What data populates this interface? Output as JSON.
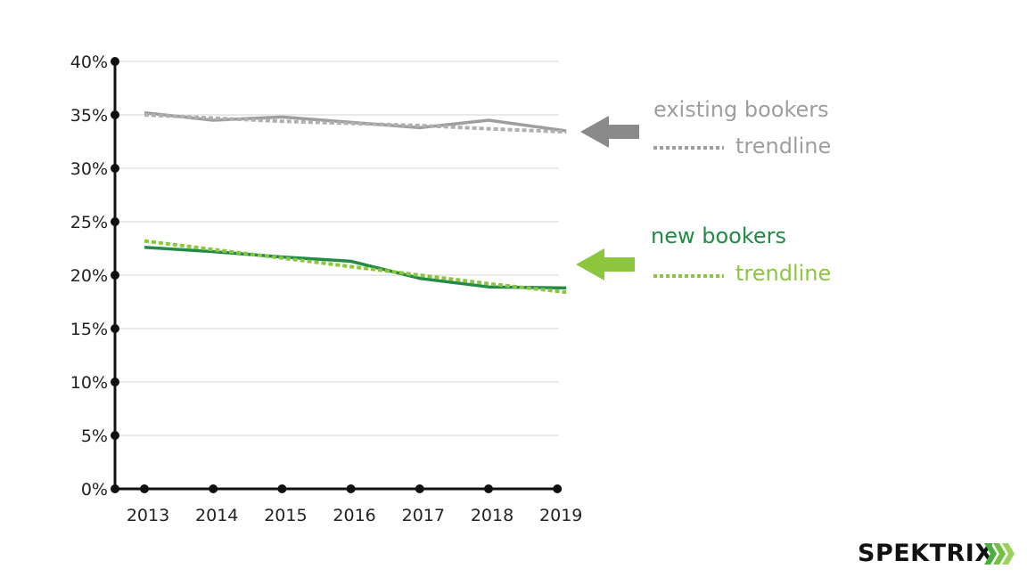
{
  "chart_data": {
    "type": "line",
    "x": [
      "2013",
      "2014",
      "2015",
      "2016",
      "2017",
      "2018",
      "2019"
    ],
    "y_ticks": [
      "0%",
      "5%",
      "10%",
      "15%",
      "20%",
      "25%",
      "30%",
      "35%",
      "40%"
    ],
    "ylim": [
      0,
      40
    ],
    "grid": true,
    "series": [
      {
        "name": "existing bookers",
        "kind": "actual",
        "color": "#9e9e9e",
        "values": [
          35.2,
          34.5,
          34.8,
          34.3,
          33.8,
          34.5,
          33.5
        ]
      },
      {
        "name": "trendline",
        "kind": "trend",
        "color": "#b0b0b0",
        "values": [
          35.0,
          34.7,
          34.4,
          34.2,
          34.0,
          33.7,
          33.4
        ]
      },
      {
        "name": "new bookers",
        "kind": "actual",
        "color": "#238b45",
        "values": [
          22.6,
          22.2,
          21.7,
          21.3,
          19.7,
          18.9,
          18.8
        ]
      },
      {
        "name": "trendline",
        "kind": "trend",
        "color": "#8cc63f",
        "values": [
          23.2,
          22.4,
          21.6,
          20.8,
          20.0,
          19.2,
          18.4
        ]
      }
    ]
  },
  "legend": {
    "existing_label": "existing bookers",
    "existing_trend_label": "trendline",
    "new_label": "new bookers",
    "new_trend_label": "trendline"
  },
  "colors": {
    "existing": "#9e9e9e",
    "existing_arrow": "#8a8a8a",
    "new": "#238b45",
    "new_trend": "#8cc63f",
    "axis": "#111111",
    "grid": "#dcdcdc"
  },
  "brand": {
    "logo_text": "SPEKTRIX"
  }
}
